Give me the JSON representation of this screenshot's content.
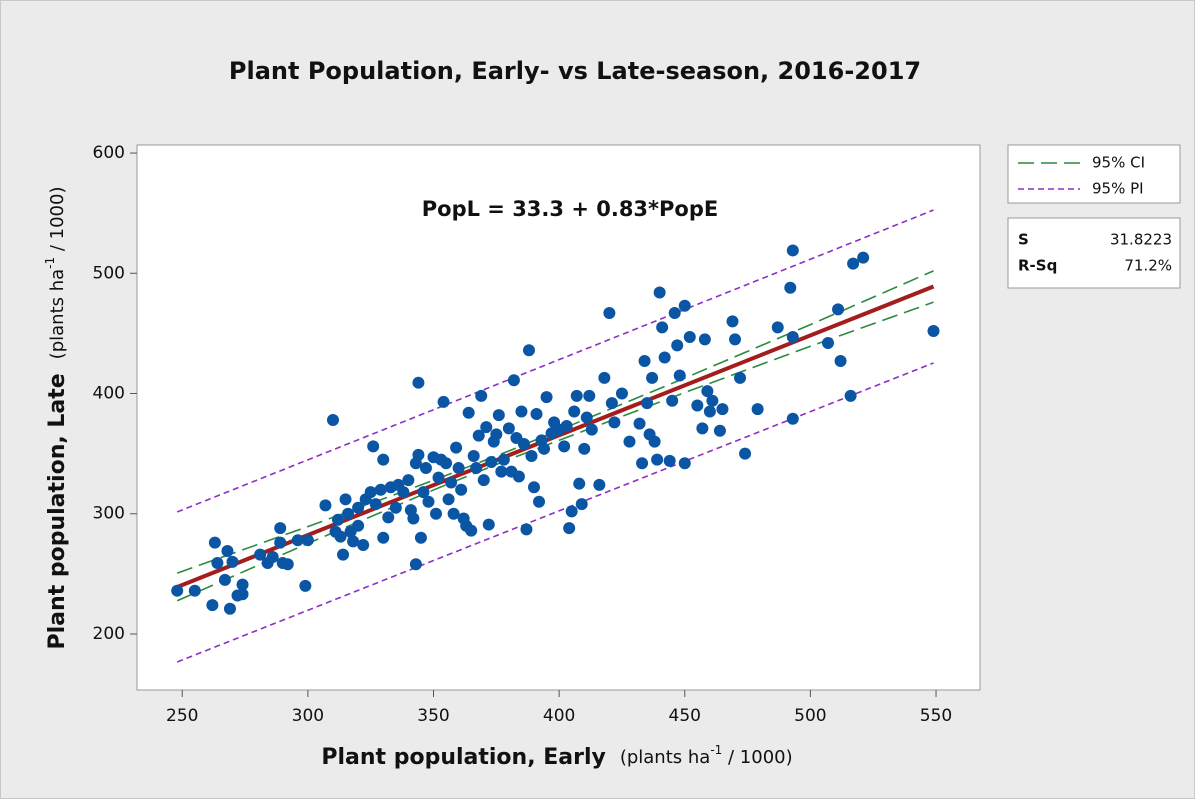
{
  "chart_data": {
    "type": "scatter",
    "title": "Plant Population, Early- vs Late-season, 2016-2017",
    "equation": "PopL = 33.3 + 0.83*PopE",
    "xlabel": {
      "main": "Plant population, Early",
      "unit_pre": "(plants ha",
      "unit_sup": "-1",
      "unit_post": " / 1000)"
    },
    "ylabel": {
      "main": "Plant population, Late",
      "unit_pre": "(plants ha",
      "unit_sup": "-1",
      "unit_post": " / 1000)"
    },
    "xlim": [
      232,
      567.5
    ],
    "ylim": [
      153.4,
      606.7
    ],
    "xticks": [
      250,
      300,
      350,
      400,
      450,
      500,
      550
    ],
    "yticks": [
      200,
      300,
      400,
      500,
      600
    ],
    "color": "#0a56a4",
    "x": [
      248,
      255,
      262,
      263,
      264,
      267,
      268,
      269,
      270,
      272,
      274,
      274,
      281,
      284,
      286,
      289,
      289,
      290,
      292,
      296,
      299,
      300,
      307,
      310,
      311,
      312,
      313,
      314,
      315,
      316,
      317,
      318,
      320,
      320,
      322,
      323,
      325,
      326,
      327,
      329,
      330,
      330,
      332,
      333,
      335,
      336,
      338,
      340,
      341,
      342,
      343,
      343,
      344,
      344,
      345,
      346,
      347,
      348,
      350,
      351,
      352,
      353,
      354,
      355,
      356,
      357,
      358,
      359,
      360,
      361,
      362,
      363,
      364,
      365,
      366,
      367,
      368,
      369,
      370,
      371,
      372,
      373,
      374,
      375,
      376,
      377,
      378,
      380,
      381,
      382,
      383,
      384,
      385,
      386,
      387,
      388,
      389,
      390,
      391,
      392,
      393,
      394,
      395,
      397,
      398,
      400,
      402,
      403,
      404,
      405,
      406,
      407,
      408,
      409,
      410,
      411,
      412,
      413,
      416,
      418,
      420,
      421,
      422,
      425,
      428,
      432,
      433,
      434,
      435,
      436,
      437,
      438,
      439,
      440,
      441,
      442,
      444,
      445,
      446,
      447,
      448,
      450,
      450,
      452,
      455,
      457,
      458,
      459,
      460,
      461,
      464,
      465,
      469,
      470,
      472,
      474,
      479,
      487,
      492,
      493,
      493,
      493,
      507,
      511,
      512,
      516,
      517,
      521,
      549
    ],
    "values": [
      236,
      236,
      224,
      276,
      259,
      245,
      269,
      221,
      260,
      232,
      241,
      233,
      266,
      259,
      264,
      288,
      276,
      259,
      258,
      278,
      240,
      278,
      307,
      378,
      285,
      295,
      281,
      266,
      312,
      300,
      285,
      277,
      290,
      305,
      274,
      312,
      318,
      356,
      308,
      320,
      280,
      345,
      297,
      322,
      305,
      324,
      318,
      328,
      303,
      296,
      258,
      342,
      349,
      409,
      280,
      318,
      338,
      310,
      347,
      300,
      330,
      345,
      393,
      342,
      312,
      326,
      300,
      355,
      338,
      320,
      296,
      290,
      384,
      286,
      348,
      338,
      365,
      398,
      328,
      372,
      291,
      343,
      360,
      366,
      382,
      335,
      345,
      371,
      335,
      411,
      363,
      331,
      385,
      358,
      287,
      436,
      348,
      322,
      383,
      310,
      361,
      354,
      397,
      367,
      376,
      370,
      356,
      373,
      288,
      302,
      385,
      398,
      325,
      308,
      354,
      380,
      398,
      370,
      324,
      413,
      467,
      392,
      376,
      400,
      360,
      375,
      342,
      427,
      392,
      366,
      413,
      360,
      345,
      484,
      455,
      430,
      344,
      394,
      467,
      440,
      415,
      473,
      342,
      447,
      390,
      371,
      445,
      402,
      385,
      394,
      369,
      387,
      460,
      445,
      413,
      350,
      387,
      455,
      488,
      519,
      379,
      447,
      442,
      470,
      427,
      398,
      508,
      513,
      452
    ],
    "fit": {
      "color": "#a31d1d",
      "x": [
        248,
        549
      ],
      "values": [
        239.1,
        489
      ]
    },
    "bands": [
      {
        "name": "95% CI",
        "color": "#2b8a3e",
        "style": "long-dash",
        "x": [
          248,
          300,
          350,
          380,
          450,
          500,
          549
        ],
        "upper": [
          250.6,
          289.3,
          327.8,
          352.2,
          412.8,
          457.3,
          502
        ],
        "lower": [
          227.6,
          275.3,
          319.8,
          345.2,
          400.8,
          439.3,
          476
        ]
      },
      {
        "name": "95% PI",
        "color": "#8e2fc2",
        "style": "short-dash",
        "x": [
          248,
          380,
          549
        ],
        "upper": [
          301.5,
          411.5,
          552.6
        ],
        "lower": [
          176.7,
          285.9,
          425.4
        ]
      }
    ],
    "stats": [
      {
        "label": "S",
        "value": "31.8223"
      },
      {
        "label": "R-Sq",
        "value": "71.2%"
      }
    ]
  }
}
